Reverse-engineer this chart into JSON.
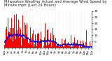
{
  "title": "Milwaukee Weather Actual and Average Wind Speed by Minute mph (Last 24 Hours)",
  "num_points": 1440,
  "background_color": "#ffffff",
  "bar_color": "#ff0000",
  "avg_color": "#0000ff",
  "ylim": [
    0,
    30
  ],
  "yticks": [
    5,
    10,
    15,
    20,
    25,
    30
  ],
  "title_fontsize": 3.8,
  "tick_fontsize": 3.0,
  "xlabel_fontsize": 2.8
}
